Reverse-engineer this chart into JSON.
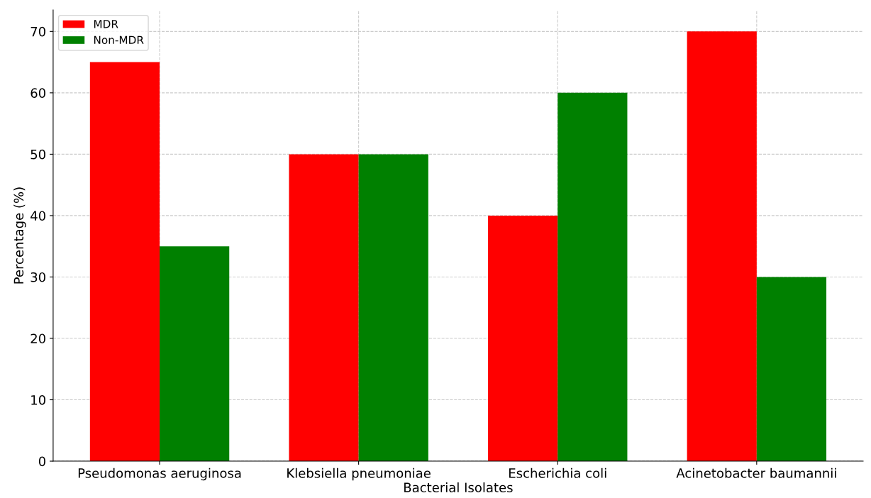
{
  "chart_data": {
    "type": "bar",
    "xlabel": "Bacterial Isolates",
    "ylabel": "Percentage (%)",
    "categories": [
      "Pseudomonas aeruginosa",
      "Klebsiella pneumoniae",
      "Escherichia coli",
      "Acinetobacter baumannii"
    ],
    "series": [
      {
        "name": "MDR",
        "color": "#ff0000",
        "values": [
          65,
          50,
          40,
          70
        ]
      },
      {
        "name": "Non-MDR",
        "color": "#008000",
        "values": [
          35,
          50,
          60,
          30
        ]
      }
    ],
    "ylim": [
      0,
      73.5
    ],
    "yticks": [
      0,
      10,
      20,
      30,
      40,
      50,
      60,
      70
    ],
    "grid": true,
    "legend": "top left"
  }
}
